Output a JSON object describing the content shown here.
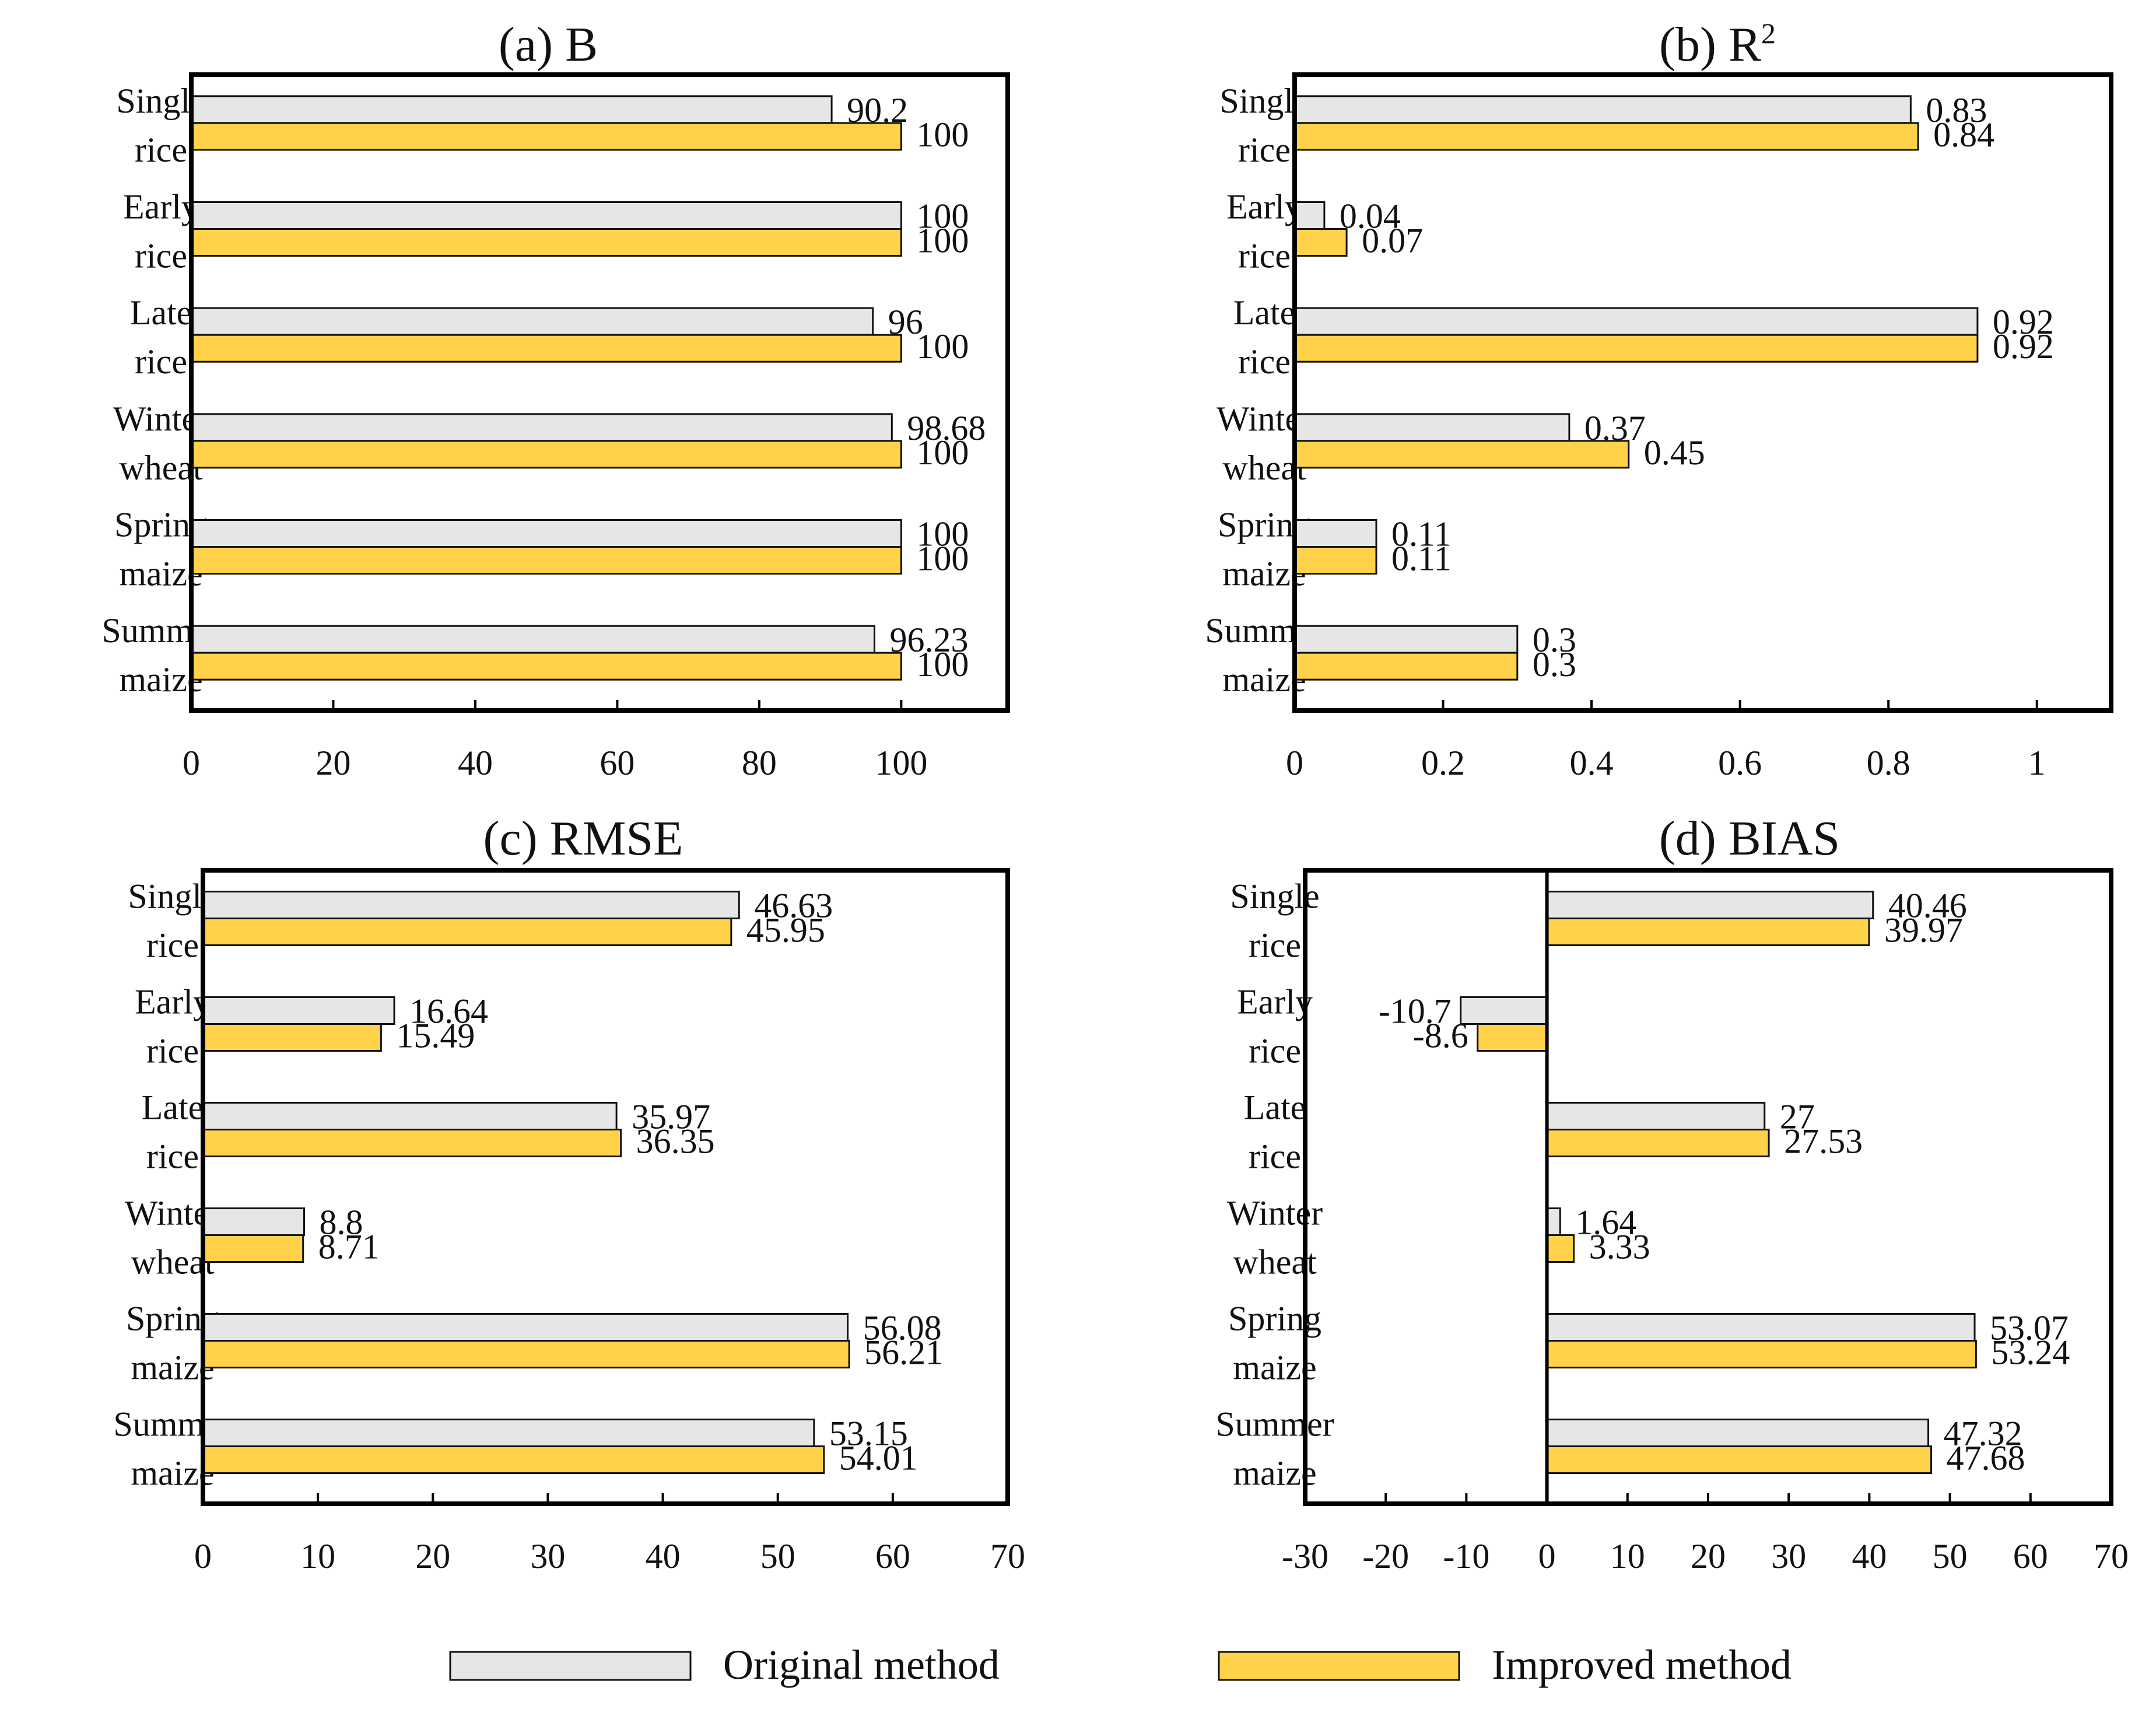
{
  "colors": {
    "original": "#e6e6e6",
    "improved": "#ffd24a"
  },
  "legend": {
    "items": [
      {
        "label": "Original method",
        "color": "#e6e6e6"
      },
      {
        "label": "Improved method",
        "color": "#ffd24a"
      }
    ]
  },
  "chart_data": [
    {
      "type": "bar",
      "orientation": "horizontal",
      "title": "(a) B",
      "categories": [
        [
          "Single",
          "rice"
        ],
        [
          "Early",
          "rice"
        ],
        [
          "Late",
          "rice"
        ],
        [
          "Winter",
          "wheat"
        ],
        [
          "Spring",
          "maize"
        ],
        [
          "Summer",
          "maize"
        ]
      ],
      "series": [
        {
          "name": "Original method",
          "values": [
            90.2,
            100,
            96,
            98.68,
            100,
            96.23
          ],
          "labels": [
            "90.2",
            "100",
            "96",
            "98.68",
            "100",
            "96.23"
          ]
        },
        {
          "name": "Improved method",
          "values": [
            100,
            100,
            100,
            100,
            100,
            100
          ],
          "labels": [
            "100",
            "100",
            "100",
            "100",
            "100",
            "100"
          ]
        }
      ],
      "xlim": [
        0,
        115
      ],
      "xticks": [
        0,
        20,
        40,
        60,
        80,
        100
      ],
      "xtick_labels": [
        "0",
        "20",
        "40",
        "60",
        "80",
        "100"
      ],
      "grid": false,
      "legend": "bottom"
    },
    {
      "type": "bar",
      "orientation": "horizontal",
      "title": "(b) R",
      "title_sup": "2",
      "categories": [
        [
          "Single",
          "rice"
        ],
        [
          "Early",
          "rice"
        ],
        [
          "Late",
          "rice"
        ],
        [
          "Winter",
          "wheat"
        ],
        [
          "Spring",
          "maize"
        ],
        [
          "Summer",
          "maize"
        ]
      ],
      "series": [
        {
          "name": "Original method",
          "values": [
            0.83,
            0.04,
            0.92,
            0.37,
            0.11,
            0.3
          ],
          "labels": [
            "0.83",
            "0.04",
            "0.92",
            "0.37",
            "0.11",
            "0.3"
          ]
        },
        {
          "name": "Improved method",
          "values": [
            0.84,
            0.07,
            0.92,
            0.45,
            0.11,
            0.3
          ],
          "labels": [
            "0.84",
            "0.07",
            "0.92",
            "0.45",
            "0.11",
            "0.3"
          ]
        }
      ],
      "xlim": [
        0,
        1.1
      ],
      "xticks": [
        0,
        0.2,
        0.4,
        0.6,
        0.8,
        1
      ],
      "xtick_labels": [
        "0",
        "0.2",
        "0.4",
        "0.6",
        "0.8",
        "1"
      ],
      "grid": false,
      "legend": "bottom"
    },
    {
      "type": "bar",
      "orientation": "horizontal",
      "title": "(c)  RMSE",
      "categories": [
        [
          "Single",
          "rice"
        ],
        [
          "Early",
          "rice"
        ],
        [
          "Late",
          "rice"
        ],
        [
          "Winter",
          "wheat"
        ],
        [
          "Spring",
          "maize"
        ],
        [
          "Summer",
          "maize"
        ]
      ],
      "series": [
        {
          "name": "Original method",
          "values": [
            46.63,
            16.64,
            35.97,
            8.8,
            56.08,
            53.15
          ],
          "labels": [
            "46.63",
            "16.64",
            "35.97",
            "8.8",
            "56.08",
            "53.15"
          ]
        },
        {
          "name": "Improved method",
          "values": [
            45.95,
            15.49,
            36.35,
            8.71,
            56.21,
            54.01
          ],
          "labels": [
            "45.95",
            "15.49",
            "36.35",
            "8.71",
            "56.21",
            "54.01"
          ]
        }
      ],
      "xlim": [
        0,
        70
      ],
      "xticks": [
        0,
        10,
        20,
        30,
        40,
        50,
        60,
        70
      ],
      "xtick_labels": [
        "0",
        "10",
        "20",
        "30",
        "40",
        "50",
        "60",
        "70"
      ],
      "grid": false,
      "legend": "bottom"
    },
    {
      "type": "bar",
      "orientation": "horizontal",
      "title": "(d) BIAS",
      "categories": [
        [
          "Single",
          "rice"
        ],
        [
          "Early",
          "rice"
        ],
        [
          "Late",
          "rice"
        ],
        [
          "Winter",
          "wheat"
        ],
        [
          "Spring",
          "maize"
        ],
        [
          "Summer",
          "maize"
        ]
      ],
      "series": [
        {
          "name": "Original method",
          "values": [
            40.46,
            -10.7,
            27,
            1.64,
            53.07,
            47.32
          ],
          "labels": [
            "40.46",
            "-10.7",
            "27",
            "1.64",
            "53.07",
            "47.32"
          ]
        },
        {
          "name": "Improved method",
          "values": [
            39.97,
            -8.6,
            27.53,
            3.33,
            53.24,
            47.68
          ],
          "labels": [
            "39.97",
            "-8.6",
            "27.53",
            "3.33",
            "53.24",
            "47.68"
          ]
        }
      ],
      "xlim": [
        -30,
        70
      ],
      "xticks": [
        -30,
        -20,
        -10,
        0,
        10,
        20,
        30,
        40,
        50,
        60,
        70
      ],
      "xtick_labels": [
        "-30",
        "-20",
        "-10",
        "0",
        "10",
        "20",
        "30",
        "40",
        "50",
        "60",
        "70"
      ],
      "zero_line": true,
      "grid": false,
      "legend": "bottom"
    }
  ]
}
